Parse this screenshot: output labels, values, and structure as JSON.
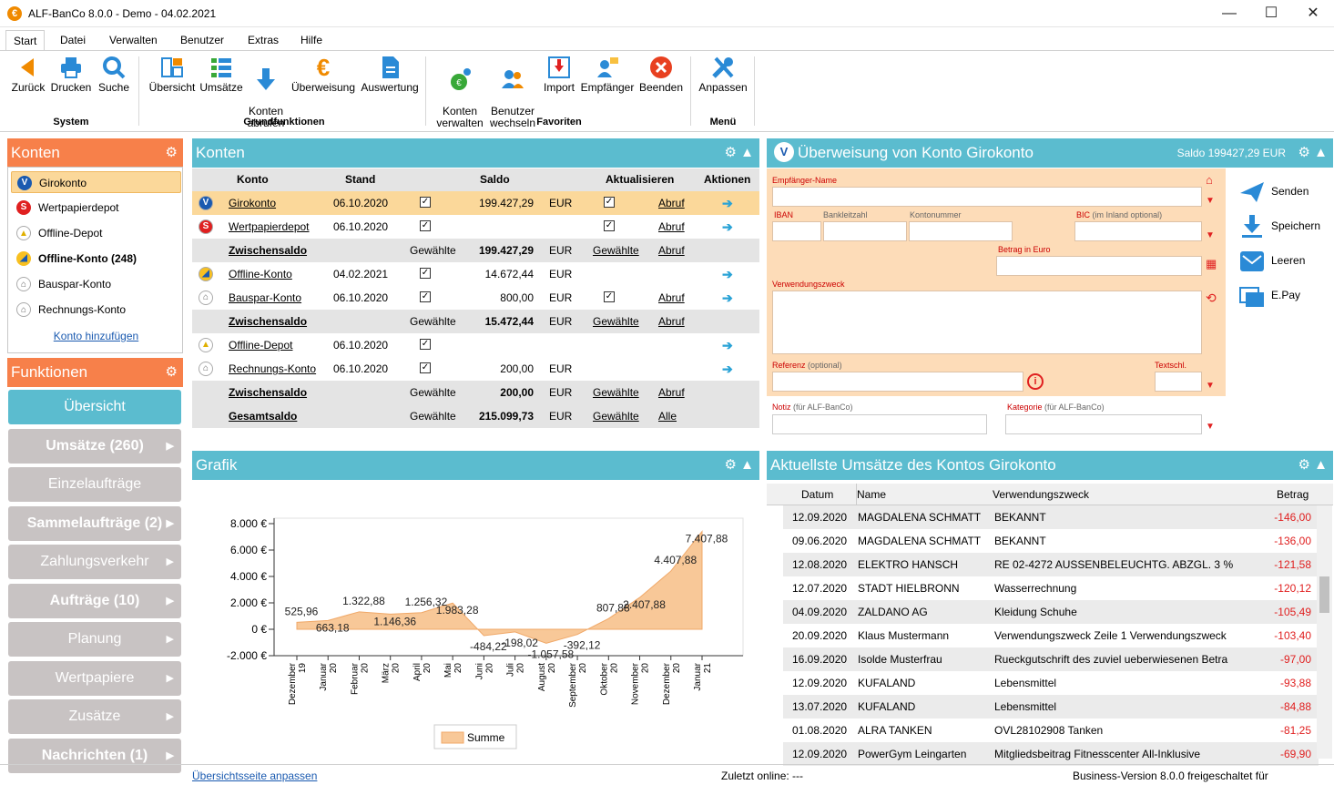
{
  "window": {
    "title": "ALF-BanCo 8.0.0 - Demo  -  04.02.2021"
  },
  "menu": [
    "Start",
    "Datei",
    "Verwalten",
    "Benutzer",
    "Extras",
    "Hilfe"
  ],
  "ribbon": {
    "system": {
      "label": "System",
      "items": [
        "Zurück",
        "Drucken",
        "Suche"
      ]
    },
    "grund": {
      "label": "Grundfunktionen",
      "items": [
        "Übersicht",
        "Umsätze",
        "Konten\nabrufen",
        "Überweisung",
        "Auswertung"
      ]
    },
    "fav": {
      "label": "Favoriten",
      "items": [
        "Konten\nverwalten",
        "Benutzer\nwechseln",
        "Import",
        "Empfänger",
        "Beenden"
      ]
    },
    "menu": {
      "label": "Menü",
      "items": [
        "Anpassen"
      ]
    }
  },
  "konten_panel": {
    "title": "Konten",
    "add_link": "Konto hinzufügen",
    "items": [
      {
        "label": "Girokonto",
        "bold": false
      },
      {
        "label": "Wertpapierdepot",
        "bold": false
      },
      {
        "label": "Offline-Depot",
        "bold": false
      },
      {
        "label": "Offline-Konto (248)",
        "bold": true
      },
      {
        "label": "Bauspar-Konto",
        "bold": false
      },
      {
        "label": "Rechnungs-Konto",
        "bold": false
      }
    ]
  },
  "funktionen": {
    "title": "Funktionen",
    "items": [
      {
        "label": "Übersicht",
        "bold": false,
        "active": true,
        "arrow": false
      },
      {
        "label": "Umsätze (260)",
        "bold": true,
        "arrow": true
      },
      {
        "label": "Einzelaufträge",
        "bold": false,
        "arrow": false
      },
      {
        "label": "Sammelaufträge (2)",
        "bold": true,
        "arrow": true
      },
      {
        "label": "Zahlungsverkehr",
        "bold": false,
        "arrow": true
      },
      {
        "label": "Aufträge (10)",
        "bold": true,
        "arrow": true
      },
      {
        "label": "Planung",
        "bold": false,
        "arrow": true
      },
      {
        "label": "Wertpapiere",
        "bold": false,
        "arrow": true
      },
      {
        "label": "Zusätze",
        "bold": false,
        "arrow": true
      },
      {
        "label": "Nachrichten (1)",
        "bold": true,
        "arrow": true
      }
    ]
  },
  "konten_table": {
    "title": "Konten",
    "headers": [
      "Konto",
      "Stand",
      "Saldo",
      "Aktualisieren",
      "Aktionen"
    ],
    "rows": [
      {
        "type": "acct",
        "konto": "Girokonto",
        "stand": "06.10.2020",
        "cb": true,
        "saldo": "199.427,29",
        "cur": "EUR",
        "akt": true,
        "abruf": "Abruf",
        "action": true,
        "sel": true
      },
      {
        "type": "acct",
        "konto": "Wertpapierdepot",
        "stand": "06.10.2020",
        "cb": true,
        "saldo": "",
        "cur": "",
        "akt": true,
        "abruf": "Abruf",
        "action": true
      },
      {
        "type": "sum",
        "konto": "Zwischensaldo",
        "g1": "Gewählte",
        "saldo": "199.427,29",
        "cur": "EUR",
        "g2": "Gewählte",
        "abruf": "Abruf"
      },
      {
        "type": "acct",
        "konto": "Offline-Konto",
        "stand": "04.02.2021",
        "cb": true,
        "saldo": "14.672,44",
        "cur": "EUR",
        "akt": false,
        "abruf": "",
        "action": true
      },
      {
        "type": "acct",
        "konto": "Bauspar-Konto",
        "stand": "06.10.2020",
        "cb": true,
        "saldo": "800,00",
        "cur": "EUR",
        "akt": true,
        "abruf": "Abruf",
        "action": true
      },
      {
        "type": "sum",
        "konto": "Zwischensaldo",
        "g1": "Gewählte",
        "saldo": "15.472,44",
        "cur": "EUR",
        "g2": "Gewählte",
        "abruf": "Abruf"
      },
      {
        "type": "acct",
        "konto": "Offline-Depot",
        "stand": "06.10.2020",
        "cb": true,
        "saldo": "",
        "cur": "",
        "akt": false,
        "abruf": "",
        "action": true
      },
      {
        "type": "acct",
        "konto": "Rechnungs-Konto",
        "stand": "06.10.2020",
        "cb": true,
        "saldo": "200,00",
        "cur": "EUR",
        "akt": false,
        "abruf": "",
        "action": true
      },
      {
        "type": "sum",
        "konto": "Zwischensaldo",
        "g1": "Gewählte",
        "saldo": "200,00",
        "cur": "EUR",
        "g2": "Gewählte",
        "abruf": "Abruf"
      },
      {
        "type": "sum",
        "konto": "Gesamtsaldo",
        "g1": "Gewählte",
        "saldo": "215.099,73",
        "cur": "EUR",
        "g2": "Gewählte",
        "abruf": "Alle"
      }
    ]
  },
  "ueberweisung": {
    "title": "Überweisung von Konto Girokonto",
    "saldo": "Saldo 199427,29 EUR",
    "labels": {
      "empf": "Empfänger-Name",
      "iban": "IBAN",
      "blz": "Bankleitzahl",
      "ktonr": "Kontonummer",
      "bic": "BIC",
      "bic_hint": "(im Inland optional)",
      "betrag": "Betrag in Euro",
      "vz": "Verwendungszweck",
      "ref": "Referenz",
      "ref_hint": "(optional)",
      "textschl": "Textschl.",
      "notiz": "Notiz",
      "notiz_hint": "(für ALF-BanCo)",
      "kat": "Kategorie",
      "kat_hint": "(für ALF-BanCo)"
    },
    "buttons": [
      "Senden",
      "Speichern",
      "Leeren",
      "E.Pay"
    ]
  },
  "grafik": {
    "title": "Grafik"
  },
  "chart_data": {
    "type": "area",
    "x": [
      "Dezember 19",
      "Januar 20",
      "Februar 20",
      "März 20",
      "April 20",
      "Mai 20",
      "Juni 20",
      "Juli 20",
      "August 20",
      "September 20",
      "Oktober 20",
      "November 20",
      "Dezember 20",
      "Januar 21"
    ],
    "series": [
      {
        "name": "Summe",
        "values": [
          525.96,
          663.18,
          1322.88,
          1146.36,
          1256.32,
          1983.28,
          -484.22,
          -198.02,
          -1057.58,
          -392.12,
          807.88,
          2407.88,
          4407.88,
          7407.88
        ]
      }
    ],
    "labels": [
      "525,96",
      "663,18",
      "1.322,88",
      "1.146,36",
      "1.256,32",
      "1.983,28",
      "-484,22",
      "-198,02",
      "-1.057,58",
      "-392,12",
      "807,88",
      "2.407,88",
      "4.407,88",
      "7.407,88"
    ],
    "yticks": [
      "8.000 €",
      "6.000 €",
      "4.000 €",
      "2.000 €",
      "0 €",
      "-2.000 €"
    ],
    "ylim": [
      -2000,
      8000
    ],
    "color": "#f8c898",
    "legend": "bottom"
  },
  "umsaetze": {
    "title": "Aktuellste Umsätze des Kontos Girokonto",
    "headers": [
      "Datum",
      "Name",
      "Verwendungszweck",
      "Betrag"
    ],
    "rows": [
      [
        "12.09.2020",
        "MAGDALENA SCHMATT",
        "BEKANNT",
        "-146,00"
      ],
      [
        "09.06.2020",
        "MAGDALENA SCHMATT",
        "BEKANNT",
        "-136,00"
      ],
      [
        "12.08.2020",
        "ELEKTRO HANSCH",
        "RE 02-4272 AUSSENBELEUCHTG. ABZGL. 3 %",
        "-121,58"
      ],
      [
        "12.07.2020",
        "STADT HIELBRONN",
        "Wasserrechnung",
        "-120,12"
      ],
      [
        "04.09.2020",
        "ZALDANO AG",
        "Kleidung Schuhe",
        "-105,49"
      ],
      [
        "20.09.2020",
        "Klaus Mustermann",
        "Verwendungszweck Zeile 1 Verwendungszweck",
        "-103,40"
      ],
      [
        "16.09.2020",
        "Isolde Musterfrau",
        "Rueckgutschrift des zuviel ueberwiesenen Betra",
        "-97,00"
      ],
      [
        "12.09.2020",
        "KUFALAND",
        "Lebensmittel",
        "-93,88"
      ],
      [
        "13.07.2020",
        "KUFALAND",
        "Lebensmittel",
        "-84,88"
      ],
      [
        "01.08.2020",
        "ALRA TANKEN",
        "OVL28102908 Tanken",
        "-81,25"
      ],
      [
        "12.09.2020",
        "PowerGym Leingarten",
        "Mitgliedsbeitrag Fitnesscenter All-Inklusive",
        "-69,90"
      ]
    ]
  },
  "status": {
    "link": "Übersichtsseite anpassen",
    "online": "Zuletzt online: ---",
    "version": "Business-Version 8.0.0 freigeschaltet für"
  }
}
